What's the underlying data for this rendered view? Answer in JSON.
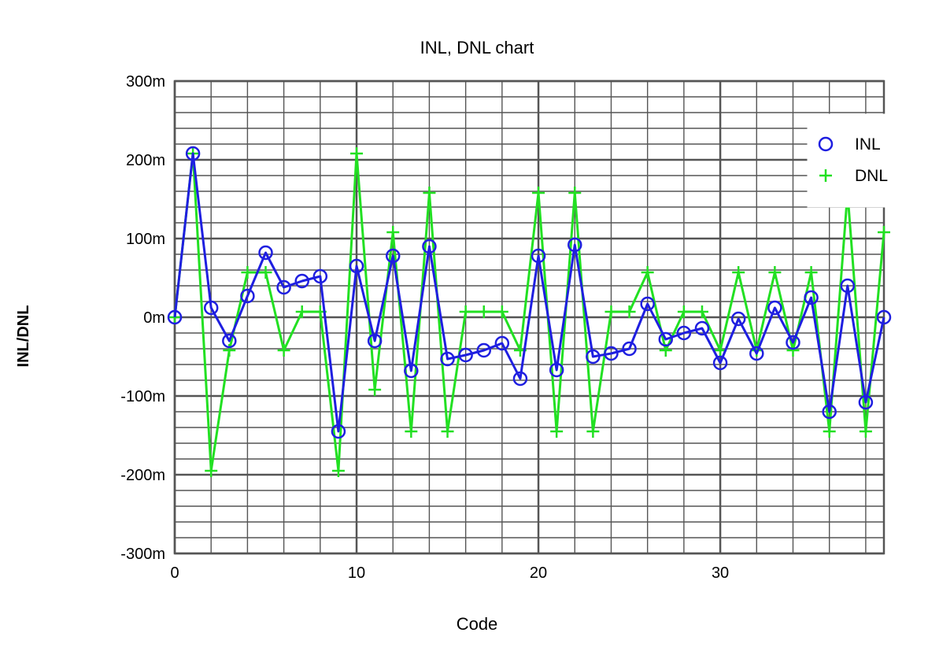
{
  "chart_data": {
    "type": "line",
    "title": "INL, DNL chart",
    "xlabel": "Code",
    "ylabel": "INL/DNL",
    "xlim": [
      0,
      39
    ],
    "ylim": [
      -300,
      300
    ],
    "x_ticks": [
      0,
      10,
      20,
      30
    ],
    "x_tick_labels": [
      "0",
      "10",
      "20",
      "30"
    ],
    "y_ticks": [
      300,
      200,
      100,
      0,
      -100,
      -200,
      -300
    ],
    "y_tick_labels": [
      "300m",
      "200m",
      "100m",
      "0m",
      "-100m",
      "-200m",
      "-300m"
    ],
    "grid": true,
    "legend_position": "top-right",
    "colors": {
      "INL": "#1f1fe0",
      "DNL": "#22e022",
      "grid": "#555555"
    },
    "x": [
      0,
      1,
      2,
      3,
      4,
      5,
      6,
      7,
      8,
      9,
      10,
      11,
      12,
      13,
      14,
      15,
      16,
      17,
      18,
      19,
      20,
      21,
      22,
      23,
      24,
      25,
      26,
      27,
      28,
      29,
      30,
      31,
      32,
      33,
      34,
      35,
      36,
      37,
      38,
      39
    ],
    "series": [
      {
        "name": "INL",
        "marker": "circle",
        "values": [
          0,
          208,
          12,
          -30,
          27,
          82,
          38,
          46,
          52,
          -145,
          65,
          -30,
          78,
          -68,
          90,
          -53,
          -48,
          -42,
          -33,
          -78,
          78,
          -67,
          92,
          -50,
          -46,
          -40,
          17,
          -28,
          -20,
          -14,
          -58,
          -2,
          -46,
          12,
          -32,
          25,
          -120,
          40,
          -108,
          0
        ]
      },
      {
        "name": "DNL",
        "marker": "plus",
        "values": [
          0,
          208,
          -195,
          -42,
          57,
          57,
          -42,
          7,
          7,
          -195,
          208,
          -92,
          108,
          -145,
          158,
          -145,
          7,
          7,
          7,
          -42,
          158,
          -145,
          158,
          -145,
          7,
          7,
          57,
          -42,
          7,
          7,
          -42,
          57,
          -42,
          57,
          -42,
          57,
          -145,
          158,
          -145,
          108
        ]
      }
    ]
  }
}
